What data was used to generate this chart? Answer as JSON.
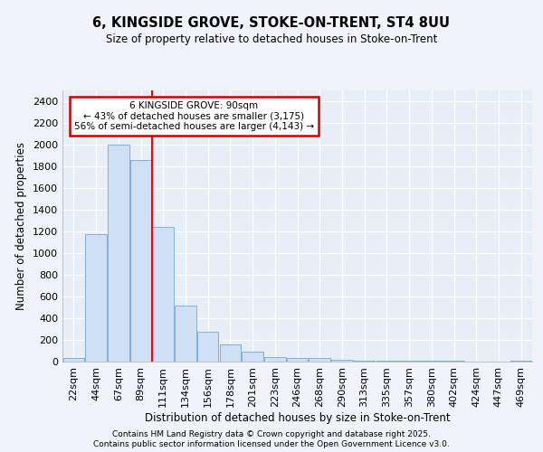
{
  "title": "6, KINGSIDE GROVE, STOKE-ON-TRENT, ST4 8UU",
  "subtitle": "Size of property relative to detached houses in Stoke-on-Trent",
  "xlabel": "Distribution of detached houses by size in Stoke-on-Trent",
  "ylabel": "Number of detached properties",
  "categories": [
    "22sqm",
    "44sqm",
    "67sqm",
    "89sqm",
    "111sqm",
    "134sqm",
    "156sqm",
    "178sqm",
    "201sqm",
    "223sqm",
    "246sqm",
    "268sqm",
    "290sqm",
    "313sqm",
    "335sqm",
    "357sqm",
    "380sqm",
    "402sqm",
    "424sqm",
    "447sqm",
    "469sqm"
  ],
  "values": [
    30,
    1175,
    2000,
    1860,
    1240,
    520,
    275,
    155,
    90,
    45,
    35,
    35,
    20,
    10,
    8,
    5,
    5,
    5,
    3,
    3,
    5
  ],
  "bar_color": "#cfe0f5",
  "bar_edge_color": "#7fb0e0",
  "red_line_x": 3.5,
  "annotation_line1": "6 KINGSIDE GROVE: 90sqm",
  "annotation_line2": "← 43% of detached houses are smaller (3,175)",
  "annotation_line3": "56% of semi-detached houses are larger (4,143) →",
  "annotation_box_color": "#ffffff",
  "annotation_box_edge": "#cc0000",
  "ylim": [
    0,
    2500
  ],
  "yticks": [
    0,
    200,
    400,
    600,
    800,
    1000,
    1200,
    1400,
    1600,
    1800,
    2000,
    2200,
    2400
  ],
  "bg_color": "#f0f4fa",
  "plot_bg_color": "#e8eef8",
  "grid_color": "#ffffff",
  "footer_line1": "Contains HM Land Registry data © Crown copyright and database right 2025.",
  "footer_line2": "Contains public sector information licensed under the Open Government Licence v3.0."
}
